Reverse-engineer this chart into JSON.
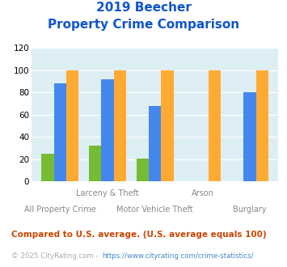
{
  "title_line1": "2019 Beecher",
  "title_line2": "Property Crime Comparison",
  "categories": [
    "All Property Crime",
    "Larceny & Theft",
    "Motor Vehicle Theft",
    "Arson",
    "Burglary"
  ],
  "cat_labels_top": [
    "",
    "Larceny & Theft",
    "",
    "Arson",
    ""
  ],
  "cat_labels_bottom": [
    "All Property Crime",
    "",
    "Motor Vehicle Theft",
    "",
    "Burglary"
  ],
  "beecher": [
    25,
    32,
    21,
    0,
    0
  ],
  "illinois": [
    88,
    92,
    68,
    0,
    80
  ],
  "national": [
    100,
    100,
    100,
    100,
    100
  ],
  "beecher_color": "#77bb33",
  "illinois_color": "#4488ee",
  "national_color": "#ffaa33",
  "ylim": [
    0,
    120
  ],
  "yticks": [
    0,
    20,
    40,
    60,
    80,
    100,
    120
  ],
  "background_color": "#ddeef5",
  "title_color": "#1155cc",
  "footnote1": "Compared to U.S. average. (U.S. average equals 100)",
  "footnote2": "© 2025 CityRating.com - https://www.cityrating.com/crime-statistics/",
  "footnote1_color": "#cc4400",
  "footnote2_color": "#aaaaaa",
  "url_color": "#4488cc"
}
